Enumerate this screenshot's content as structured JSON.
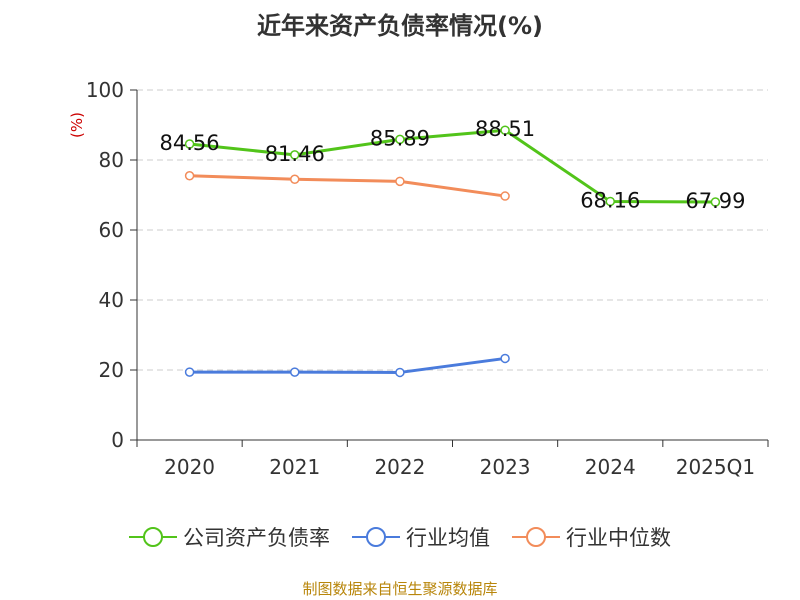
{
  "chart_data": {
    "type": "line",
    "title": "近年来资产负债率情况(%)",
    "ylabel": "(%)",
    "xlabel": "",
    "categories": [
      "2020",
      "2021",
      "2022",
      "2023",
      "2024",
      "2025Q1"
    ],
    "ylim": [
      0,
      100
    ],
    "yticks": [
      "0",
      "20",
      "40",
      "60",
      "80",
      "100"
    ],
    "grid": true,
    "legend_position": "bottom",
    "series": [
      {
        "name": "公司资产负债率",
        "color": "#52c41a",
        "values": [
          84.56,
          81.46,
          85.89,
          88.51,
          68.16,
          67.99
        ],
        "labels": [
          "84.56",
          "81.46",
          "85.89",
          "88.51",
          "68.16",
          "67.99"
        ]
      },
      {
        "name": "行业均值",
        "color": "#4a7bdc",
        "values": [
          19.4,
          19.4,
          19.3,
          23.3,
          null,
          null
        ]
      },
      {
        "name": "行业中位数",
        "color": "#f28c5a",
        "values": [
          75.5,
          74.5,
          73.9,
          69.7,
          null,
          null
        ]
      }
    ]
  },
  "source_text": "制图数据来自恒生聚源数据库",
  "colors": {
    "axis": "#333333",
    "grid": "#cccccc",
    "ylabel": "#cc0000",
    "source": "#b8860b"
  }
}
